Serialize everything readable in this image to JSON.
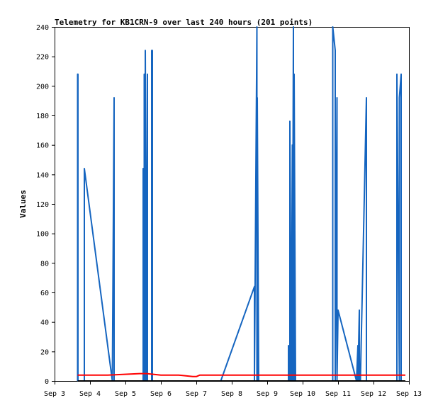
{
  "chart_data": {
    "type": "line",
    "title": "Telemetry for KB1CRN-9 over last 240 hours (201 points)",
    "xlabel": "",
    "ylabel": "Values",
    "x_tick_labels": [
      "Sep 3",
      "Sep 4",
      "Sep 5",
      "Sep 6",
      "Sep 7",
      "Sep 8",
      "Sep 9",
      "Sep 10",
      "Sep 11",
      "Sep 12",
      "Sep 13"
    ],
    "y_ticks": [
      0,
      20,
      40,
      60,
      80,
      100,
      120,
      140,
      160,
      180,
      200,
      220,
      240
    ],
    "xlim_days": [
      3,
      13
    ],
    "ylim": [
      0,
      240
    ],
    "grid": false,
    "legend": "none",
    "series": [
      {
        "color": "#1565c0",
        "x_days": [
          3.65,
          3.65,
          3.66,
          3.66,
          3.84,
          3.84,
          4.63,
          4.63,
          4.68,
          4.68,
          4.68,
          5.5,
          5.5,
          5.53,
          5.53,
          5.56,
          5.56,
          5.6,
          5.6,
          5.62,
          5.62,
          5.64,
          5.64,
          5.74,
          5.74,
          5.76,
          5.76,
          7.69,
          8.64,
          8.64,
          8.71,
          8.71,
          8.72,
          8.72,
          8.76,
          8.76,
          8.79,
          8.79,
          9.6,
          9.6,
          9.64,
          9.64,
          9.68,
          9.68,
          9.71,
          9.71,
          9.74,
          9.74,
          9.76,
          9.76,
          9.8,
          9.8,
          9.82,
          9.82,
          10.85,
          10.85,
          10.92,
          10.92,
          10.97,
          10.97,
          11.0,
          11.0,
          11.52,
          11.52,
          11.56,
          11.56,
          11.6,
          11.6,
          11.63,
          11.63,
          11.8,
          11.8,
          12.66,
          12.66,
          12.73,
          12.73,
          12.78,
          12.78
        ],
        "values": [
          0,
          208,
          208,
          0,
          0,
          144,
          0,
          0,
          192,
          192,
          0,
          0,
          144,
          0,
          208,
          0,
          224,
          0,
          0,
          208,
          0,
          0,
          0,
          0,
          224,
          224,
          0,
          0,
          64,
          0,
          240,
          0,
          0,
          192,
          0,
          0,
          0,
          0,
          0,
          24,
          0,
          176,
          0,
          0,
          160,
          0,
          240,
          0,
          0,
          208,
          0,
          0,
          0,
          0,
          0,
          240,
          224,
          0,
          192,
          0,
          48,
          48,
          0,
          0,
          24,
          0,
          48,
          0,
          0,
          0,
          192,
          0,
          0,
          208,
          0,
          192,
          208,
          0
        ]
      },
      {
        "color": "#ff0000",
        "x_days": [
          3.65,
          4.5,
          5.4,
          5.6,
          6.0,
          6.5,
          6.9,
          7.0,
          7.1,
          7.5,
          8.0,
          8.5,
          9.0,
          10.0,
          11.0,
          12.0,
          12.9
        ],
        "values": [
          4,
          4,
          5,
          5,
          4,
          4,
          3,
          3,
          4,
          4,
          4,
          4,
          4,
          4,
          4,
          4,
          4
        ]
      },
      {
        "color": "#000000",
        "x_days": [
          3.65,
          12.9
        ],
        "values": [
          0,
          0
        ]
      }
    ]
  }
}
